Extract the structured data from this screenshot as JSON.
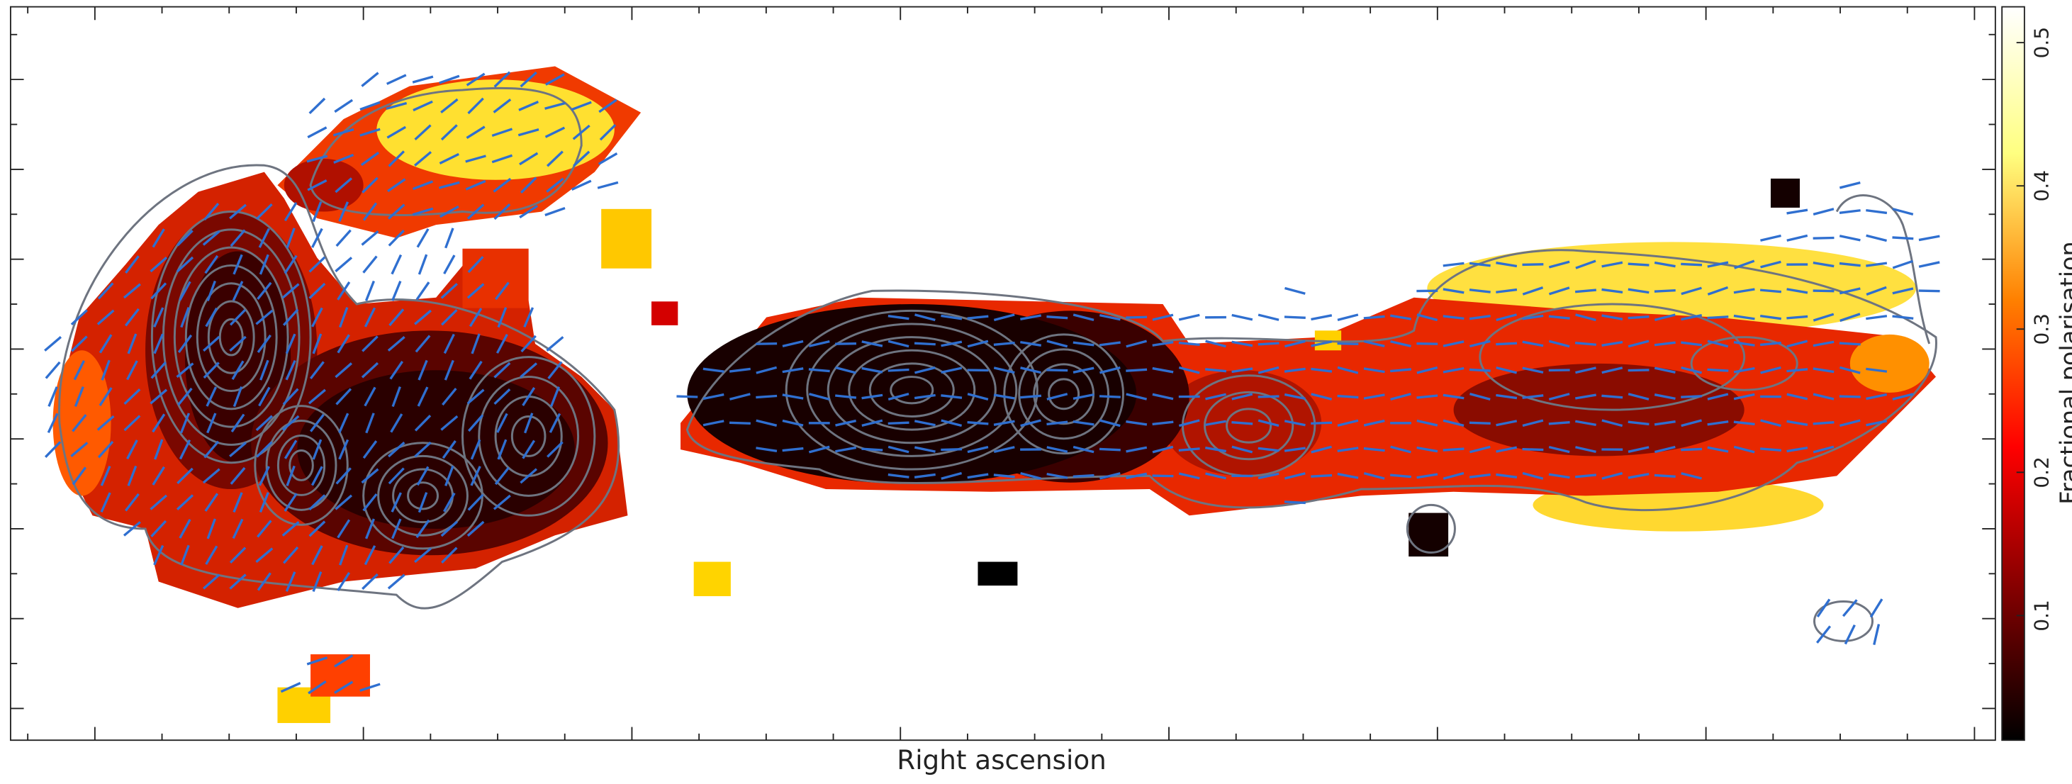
{
  "chart_data": {
    "type": "image",
    "xlabel": "Right ascension",
    "colorbar": {
      "label": "Fractional polarisation",
      "lim": [
        0.013,
        0.525
      ],
      "ticks": [
        0.1,
        0.2,
        0.3,
        0.4,
        0.5
      ],
      "colormap": "afmhot"
    }
  }
}
